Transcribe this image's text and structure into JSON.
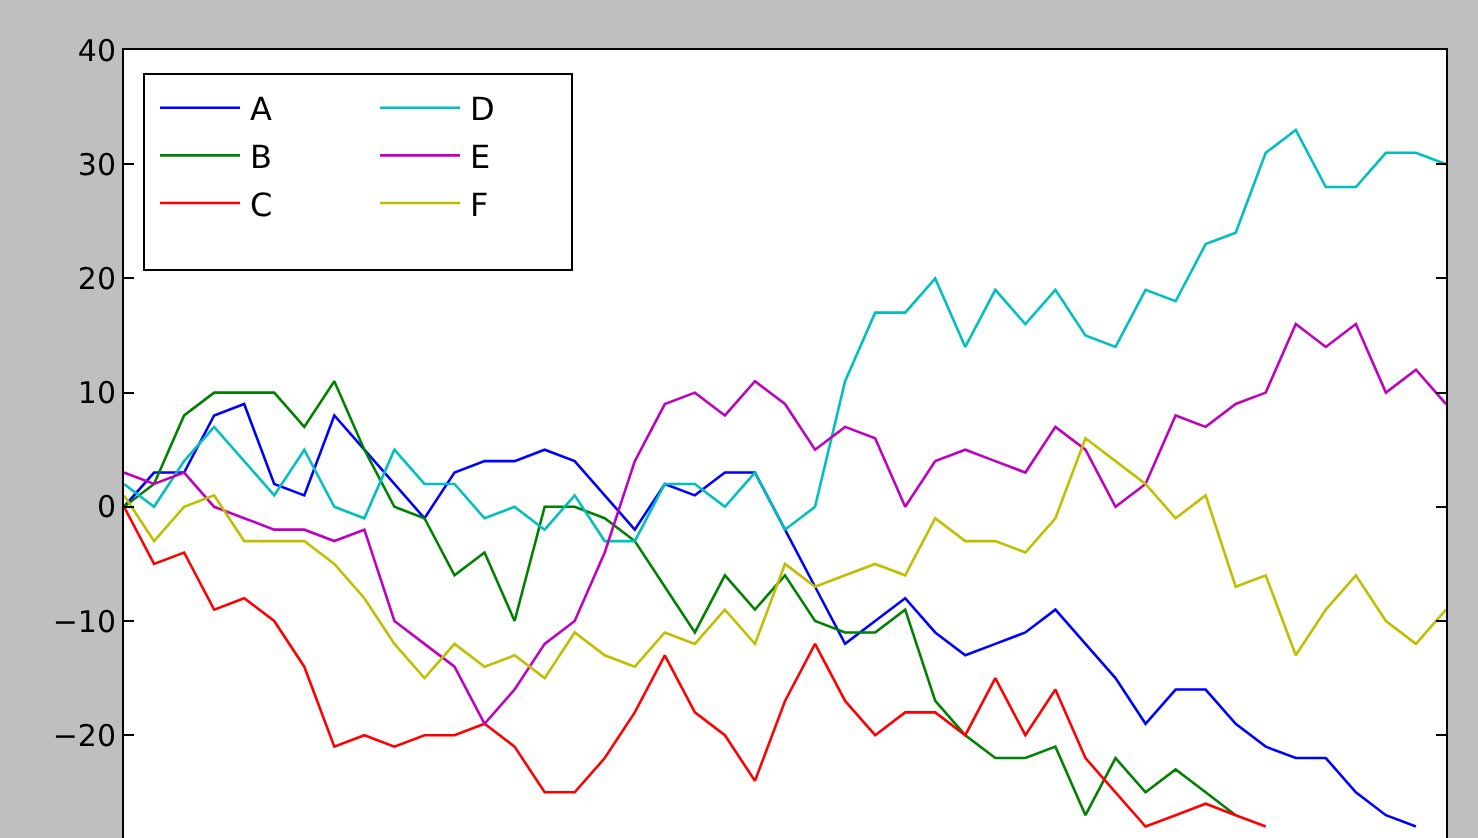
{
  "chart_data": {
    "type": "line",
    "categories": [
      null,
      null,
      null,
      null,
      null,
      null,
      null,
      null,
      null,
      null,
      null,
      null,
      null,
      null,
      null,
      null,
      null,
      null,
      null,
      null,
      null,
      null,
      null,
      null,
      null,
      null,
      null,
      null,
      null,
      null,
      null,
      null,
      null,
      null,
      null,
      null,
      null,
      null,
      null,
      null,
      null,
      null,
      null,
      null,
      null
    ],
    "series": [
      {
        "name": "A",
        "color": "#0000ff",
        "values": [
          0,
          3,
          3,
          8,
          9,
          2,
          1,
          8,
          5,
          2,
          -1,
          3,
          4,
          4,
          5,
          4,
          1,
          -2,
          2,
          1,
          3,
          3,
          -2,
          -7,
          -12,
          -10,
          -8,
          -11,
          -13,
          -12,
          -11,
          -9,
          -12,
          -15,
          -19,
          -16,
          -16,
          -19,
          -21,
          -22,
          -22,
          -25,
          -27,
          -28,
          null
        ]
      },
      {
        "name": "B",
        "color": "#008000",
        "values": [
          0,
          2,
          8,
          10,
          10,
          10,
          7,
          11,
          5,
          0,
          -1,
          -6,
          -4,
          -10,
          0,
          0,
          -1,
          -3,
          -7,
          -11,
          -6,
          -9,
          -6,
          -10,
          -11,
          -11,
          -9,
          -17,
          -20,
          -22,
          -22,
          -21,
          -27,
          -22,
          -25,
          -23,
          -25,
          -27,
          null,
          null,
          null,
          null,
          null,
          null,
          null
        ]
      },
      {
        "name": "C",
        "color": "#ff0000",
        "values": [
          0,
          -5,
          -4,
          -9,
          -8,
          -10,
          -14,
          -21,
          -20,
          -21,
          -20,
          -20,
          -19,
          -21,
          -25,
          -25,
          -22,
          -18,
          -13,
          -18,
          -20,
          -24,
          -17,
          -12,
          -17,
          -20,
          -18,
          -18,
          -20,
          -15,
          -20,
          -16,
          -22,
          -25,
          -28,
          -27,
          -26,
          -27,
          -28,
          null,
          null,
          null,
          null,
          null,
          null
        ]
      },
      {
        "name": "D",
        "color": "#00bfbf",
        "values": [
          2,
          0,
          4,
          7,
          4,
          1,
          5,
          0,
          -1,
          5,
          2,
          2,
          -1,
          0,
          -2,
          1,
          -3,
          -3,
          2,
          2,
          0,
          3,
          -2,
          0,
          11,
          17,
          17,
          20,
          14,
          19,
          16,
          19,
          15,
          14,
          19,
          18,
          23,
          24,
          31,
          33,
          28,
          28,
          31,
          31,
          30
        ]
      },
      {
        "name": "E",
        "color": "#bf00bf",
        "values": [
          3,
          2,
          3,
          0,
          -1,
          -2,
          -2,
          -3,
          -2,
          -10,
          -12,
          -14,
          -19,
          -16,
          -12,
          -10,
          -4,
          4,
          9,
          10,
          8,
          11,
          9,
          5,
          7,
          6,
          0,
          4,
          5,
          4,
          3,
          7,
          5,
          0,
          2,
          8,
          7,
          9,
          10,
          16,
          14,
          16,
          10,
          12,
          9
        ]
      },
      {
        "name": "F",
        "color": "#bfbf00",
        "values": [
          1,
          -3,
          0,
          1,
          -3,
          -3,
          -3,
          -5,
          -8,
          -12,
          -15,
          -12,
          -14,
          -13,
          -15,
          -11,
          -13,
          -14,
          -11,
          -12,
          -9,
          -12,
          -5,
          -7,
          -6,
          -5,
          -6,
          -1,
          -3,
          -3,
          -4,
          -1,
          6,
          4,
          2,
          -1,
          1,
          -7,
          -6,
          -13,
          -9,
          -6,
          -10,
          -12,
          -9
        ]
      }
    ],
    "ylim": [
      -29,
      40
    ],
    "yticks": [
      -20,
      -10,
      0,
      10,
      20,
      30,
      40
    ],
    "legend": "top left",
    "grid": false,
    "tick_labels": "y",
    "marker": "none",
    "line_style": "solid"
  }
}
